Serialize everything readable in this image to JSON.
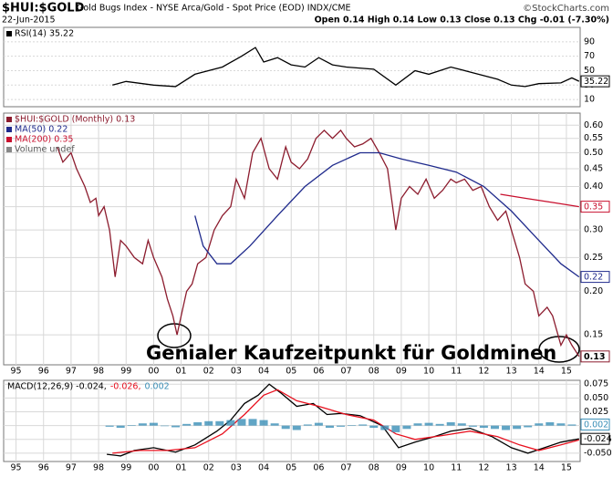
{
  "header": {
    "symbol": "$HUI:$GOLD",
    "title": "Gold Bugs Index - NYSE Arca/Gold - Spot Price (EOD) INDX/CME",
    "source": "©StockCharts.com",
    "date": "22-Jun-2015",
    "quote": "Open 0.14 High 0.14 Low 0.13 Close 0.13 Chg -0.01 (-7.30%)"
  },
  "chart_data": [
    {
      "type": "line",
      "xlim": [
        1994.55,
        2015.5
      ],
      "ylim": [
        0,
        110
      ],
      "yticks": [
        90,
        70,
        50,
        30,
        10
      ],
      "series": [
        {
          "name": "RSI(14) 35.22",
          "color": "#000000",
          "tag": true,
          "x": [
            1998.5,
            1999.0,
            2000.0,
            2000.8,
            2001.5,
            2002.5,
            2003.2,
            2003.7,
            2004.0,
            2004.5,
            2005.0,
            2005.5,
            2006.0,
            2006.5,
            2007.0,
            2008.0,
            2008.8,
            2009.5,
            2010.0,
            2010.8,
            2011.5,
            2012.5,
            2013.0,
            2013.5,
            2014.0,
            2014.8,
            2015.2,
            2015.46
          ],
          "values": [
            30,
            35,
            30,
            28,
            45,
            55,
            70,
            82,
            62,
            68,
            58,
            55,
            68,
            58,
            55,
            52,
            30,
            50,
            45,
            55,
            48,
            38,
            30,
            28,
            32,
            33,
            40,
            35.22
          ]
        }
      ]
    },
    {
      "type": "line",
      "log_scale": true,
      "grid": true,
      "xlim": [
        1994.55,
        2015.5
      ],
      "ylim": [
        0.123,
        0.65
      ],
      "yticks": [
        {
          "value": 0.6,
          "label": "0.60"
        },
        0.55,
        {
          "value": 0.5,
          "label": "0.50"
        },
        0.45,
        {
          "value": 0.4,
          "label": "0.40"
        },
        0.35,
        {
          "value": 0.3,
          "label": "0.30"
        },
        0.25,
        {
          "value": 0.2,
          "label": "0.20"
        },
        0.15
      ],
      "xticks": [
        {
          "value": 1995,
          "label": "95"
        },
        {
          "value": 1996,
          "label": "96"
        },
        {
          "value": 1997,
          "label": "97"
        },
        {
          "value": 1998,
          "label": "98"
        },
        {
          "value": 1999,
          "label": "99"
        },
        {
          "value": 2000,
          "label": "00"
        },
        {
          "value": 2001,
          "label": "01"
        },
        {
          "value": 2002,
          "label": "02"
        },
        {
          "value": 2003,
          "label": "03"
        },
        {
          "value": 2004,
          "label": "04"
        },
        {
          "value": 2005,
          "label": "05"
        },
        {
          "value": 2006,
          "label": "06"
        },
        {
          "value": 2007,
          "label": "07"
        },
        {
          "value": 2008,
          "label": "08"
        },
        {
          "value": 2009,
          "label": "09"
        },
        {
          "value": 2010,
          "label": "10"
        },
        {
          "value": 2011,
          "label": "11"
        },
        {
          "value": 2012,
          "label": "12"
        },
        {
          "value": 2013,
          "label": "13"
        },
        {
          "value": 2014,
          "label": "14"
        },
        {
          "value": 2015,
          "label": "15"
        }
      ],
      "annotation": "Genialer Kaufzeitpunkt für Goldminen",
      "extra_legend": "Volume undef",
      "series": [
        {
          "name": "$HUI:$GOLD (Monthly) 0.13",
          "color": "#8c1c2e",
          "tag": true,
          "x": [
            1996.5,
            1996.7,
            1997.0,
            1997.2,
            1997.5,
            1997.7,
            1997.9,
            1998.0,
            1998.2,
            1998.4,
            1998.6,
            1998.8,
            1999.0,
            1999.3,
            1999.6,
            1999.8,
            2000.0,
            2000.3,
            2000.5,
            2000.7,
            2000.85,
            2001.0,
            2001.2,
            2001.4,
            2001.6,
            2001.9,
            2002.2,
            2002.5,
            2002.8,
            2003.0,
            2003.3,
            2003.6,
            2003.9,
            2004.2,
            2004.5,
            2004.8,
            2005.0,
            2005.3,
            2005.6,
            2005.9,
            2006.2,
            2006.5,
            2006.8,
            2007.0,
            2007.3,
            2007.6,
            2007.9,
            2008.2,
            2008.5,
            2008.8,
            2009.0,
            2009.3,
            2009.6,
            2009.9,
            2010.2,
            2010.5,
            2010.8,
            2011.0,
            2011.3,
            2011.6,
            2011.9,
            2012.2,
            2012.5,
            2012.8,
            2013.0,
            2013.3,
            2013.5,
            2013.8,
            2014.0,
            2014.3,
            2014.5,
            2014.8,
            2015.0,
            2015.2,
            2015.46
          ],
          "values": [
            0.52,
            0.47,
            0.5,
            0.45,
            0.4,
            0.36,
            0.37,
            0.33,
            0.35,
            0.3,
            0.22,
            0.28,
            0.27,
            0.25,
            0.24,
            0.28,
            0.25,
            0.22,
            0.19,
            0.17,
            0.15,
            0.17,
            0.2,
            0.21,
            0.24,
            0.25,
            0.3,
            0.33,
            0.35,
            0.42,
            0.37,
            0.5,
            0.55,
            0.45,
            0.42,
            0.52,
            0.47,
            0.45,
            0.48,
            0.55,
            0.58,
            0.55,
            0.58,
            0.55,
            0.52,
            0.53,
            0.55,
            0.5,
            0.45,
            0.3,
            0.37,
            0.4,
            0.38,
            0.42,
            0.37,
            0.39,
            0.42,
            0.41,
            0.42,
            0.39,
            0.4,
            0.35,
            0.32,
            0.34,
            0.3,
            0.25,
            0.21,
            0.2,
            0.17,
            0.18,
            0.17,
            0.14,
            0.15,
            0.14,
            0.13
          ]
        },
        {
          "name": "MA(50) 0.22",
          "color": "#1f2a8c",
          "tag": true,
          "x": [
            2001.5,
            2001.8,
            2002.3,
            2002.8,
            2003.5,
            2004.5,
            2005.5,
            2006.5,
            2007.5,
            2008.2,
            2009.0,
            2010.0,
            2011.0,
            2012.0,
            2013.0,
            2014.0,
            2014.8,
            2015.46
          ],
          "values": [
            0.33,
            0.27,
            0.24,
            0.24,
            0.27,
            0.33,
            0.4,
            0.46,
            0.5,
            0.5,
            0.48,
            0.46,
            0.44,
            0.4,
            0.34,
            0.28,
            0.24,
            0.22
          ]
        },
        {
          "name": "MA(200) 0.35",
          "color": "#c8102e",
          "tag": true,
          "x": [
            2012.6,
            2013.5,
            2014.5,
            2015.46
          ],
          "values": [
            0.38,
            0.37,
            0.36,
            0.35
          ]
        }
      ]
    },
    {
      "type": "line",
      "grid": true,
      "xlim": [
        1994.55,
        2015.5
      ],
      "ylim": [
        -0.065,
        0.082
      ],
      "yticks": [
        0.075,
        {
          "value": 0.05,
          "label": "0.050"
        },
        0.025,
        {
          "value": 0,
          "label": "0.000"
        },
        -0.025,
        {
          "value": -0.05,
          "label": "-0.050"
        }
      ],
      "xticks": [
        {
          "value": 1995,
          "label": "95"
        },
        {
          "value": 1996,
          "label": "96"
        },
        {
          "value": 1997,
          "label": "97"
        },
        {
          "value": 1998,
          "label": "98"
        },
        {
          "value": 1999,
          "label": "99"
        },
        {
          "value": 2000,
          "label": "00"
        },
        {
          "value": 2001,
          "label": "01"
        },
        {
          "value": 2002,
          "label": "02"
        },
        {
          "value": 2003,
          "label": "03"
        },
        {
          "value": 2004,
          "label": "04"
        },
        {
          "value": 2005,
          "label": "05"
        },
        {
          "value": 2006,
          "label": "06"
        },
        {
          "value": 2007,
          "label": "07"
        },
        {
          "value": 2008,
          "label": "08"
        },
        {
          "value": 2009,
          "label": "09"
        },
        {
          "value": 2010,
          "label": "10"
        },
        {
          "value": 2011,
          "label": "11"
        },
        {
          "value": 2012,
          "label": "12"
        },
        {
          "value": 2013,
          "label": "13"
        },
        {
          "value": 2014,
          "label": "14"
        },
        {
          "value": 2015,
          "label": "15"
        }
      ],
      "series": [
        {
          "name": "MACD(12,26,9) -0.024,",
          "color": "#000000",
          "tag": true,
          "x": [
            1998.3,
            1998.8,
            1999.3,
            2000.0,
            2000.8,
            2001.5,
            2002.3,
            2002.8,
            2003.3,
            2003.8,
            2004.2,
            2004.6,
            2005.2,
            2005.8,
            2006.3,
            2006.8,
            2007.5,
            2008.3,
            2008.9,
            2009.5,
            2010.2,
            2010.8,
            2011.5,
            2012.3,
            2013.0,
            2013.6,
            2014.2,
            2014.8,
            2015.46
          ],
          "values": [
            -0.052,
            -0.055,
            -0.045,
            -0.04,
            -0.048,
            -0.035,
            -0.01,
            0.01,
            0.04,
            0.055,
            0.075,
            0.06,
            0.035,
            0.04,
            0.02,
            0.022,
            0.018,
            0,
            -0.04,
            -0.03,
            -0.02,
            -0.01,
            -0.005,
            -0.02,
            -0.04,
            -0.05,
            -0.04,
            -0.03,
            -0.024
          ]
        },
        {
          "name": "-0.026,",
          "color": "#e8101e",
          "x": [
            1998.5,
            1999.5,
            2000.5,
            2001.5,
            2002.5,
            2003.3,
            2004.0,
            2004.5,
            2005.2,
            2006.0,
            2007.0,
            2008.0,
            2008.8,
            2009.5,
            2010.5,
            2011.5,
            2012.5,
            2013.3,
            2014.0,
            2014.8,
            2015.46
          ],
          "values": [
            -0.05,
            -0.045,
            -0.045,
            -0.04,
            -0.015,
            0.02,
            0.055,
            0.065,
            0.045,
            0.035,
            0.02,
            0.01,
            -0.015,
            -0.025,
            -0.018,
            -0.01,
            -0.02,
            -0.035,
            -0.045,
            -0.035,
            -0.026
          ]
        },
        {
          "name": "0.002",
          "color": "#3a8fb7",
          "type": "bar",
          "tag": true,
          "x": [
            1998.4,
            1998.8,
            1999.2,
            1999.6,
            2000.0,
            2000.4,
            2000.8,
            2001.2,
            2001.6,
            2002.0,
            2002.4,
            2002.8,
            2003.2,
            2003.6,
            2004.0,
            2004.4,
            2004.8,
            2005.2,
            2005.6,
            2006.0,
            2006.4,
            2006.8,
            2007.2,
            2007.6,
            2008.0,
            2008.4,
            2008.8,
            2009.2,
            2009.6,
            2010.0,
            2010.4,
            2010.8,
            2011.2,
            2011.6,
            2012.0,
            2012.4,
            2012.8,
            2013.2,
            2013.6,
            2014.0,
            2014.4,
            2014.8,
            2015.2
          ],
          "values": [
            -0.002,
            -0.004,
            0.001,
            0.004,
            0.005,
            -0.001,
            -0.003,
            0.003,
            0.006,
            0.008,
            0.008,
            0.01,
            0.012,
            0.012,
            0.01,
            0.004,
            -0.006,
            -0.008,
            0.002,
            0.005,
            -0.004,
            -0.002,
            0.001,
            0.002,
            -0.004,
            -0.008,
            -0.012,
            -0.006,
            0.004,
            0.005,
            0.003,
            0.006,
            0.004,
            -0.002,
            -0.004,
            -0.006,
            -0.008,
            -0.006,
            -0.003,
            0.004,
            0.006,
            0.004,
            0.002
          ]
        }
      ]
    }
  ]
}
